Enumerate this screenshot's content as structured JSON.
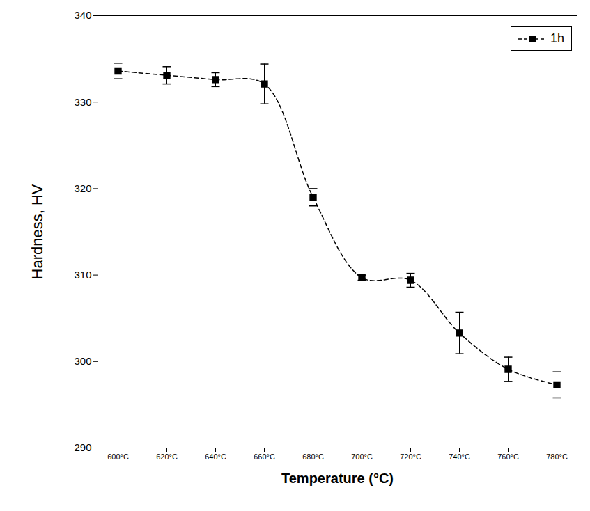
{
  "chart_data": {
    "type": "line",
    "x_label": "Temperature (°C)",
    "y_label": "Hardness, HV",
    "categories": [
      "600°C",
      "620°C",
      "640°C",
      "660°C",
      "680°C",
      "700°C",
      "720°C",
      "740°C",
      "760°C",
      "780°C"
    ],
    "series": [
      {
        "name": "1h",
        "color": "#000000",
        "marker": "square",
        "line_style": "dashed",
        "values": [
          333.6,
          333.1,
          332.6,
          332.1,
          319.0,
          309.7,
          309.4,
          303.3,
          299.1,
          297.3
        ],
        "error": [
          0.9,
          1.0,
          0.8,
          2.3,
          1.0,
          0.3,
          0.8,
          2.4,
          1.4,
          1.5
        ]
      }
    ],
    "ylim": [
      290,
      340
    ],
    "yticks": [
      290,
      300,
      310,
      320,
      330,
      340
    ],
    "legend": "top-right",
    "grid": false
  }
}
